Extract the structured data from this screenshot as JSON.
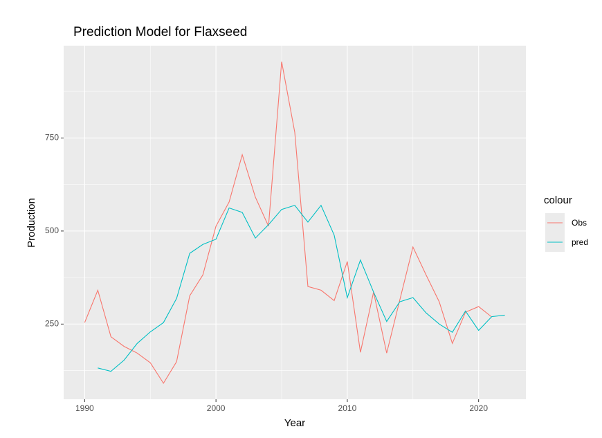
{
  "chart_data": {
    "type": "line",
    "title": "Prediction Model for Flaxseed",
    "x_label": "Year",
    "y_label": "Production",
    "legend_title": "colour",
    "x": [
      1990,
      1991,
      1992,
      1993,
      1994,
      1995,
      1996,
      1997,
      1998,
      1999,
      2000,
      2001,
      2002,
      2003,
      2004,
      2005,
      2006,
      2007,
      2008,
      2009,
      2010,
      2011,
      2012,
      2013,
      2014,
      2015,
      2016,
      2017,
      2018,
      2019,
      2020,
      2021,
      2022
    ],
    "series": [
      {
        "name": "Obs",
        "color": "#F8766D",
        "values": [
          254,
          341,
          216,
          190,
          172,
          146,
          91,
          149,
          326,
          382,
          513,
          578,
          705,
          591,
          513,
          955,
          765,
          351,
          341,
          313,
          418,
          174,
          336,
          172,
          315,
          457,
          382,
          310,
          198,
          282,
          297,
          269,
          null
        ]
      },
      {
        "name": "pred",
        "color": "#00BFC4",
        "values": [
          null,
          132,
          123,
          153,
          198,
          229,
          254,
          319,
          440,
          464,
          478,
          562,
          550,
          481,
          517,
          558,
          569,
          524,
          569,
          489,
          321,
          422,
          336,
          257,
          310,
          321,
          280,
          250,
          228,
          285,
          233,
          270,
          274
        ]
      }
    ],
    "xlim": [
      1988.4,
      2023.6
    ],
    "xticks": [
      1990,
      2000,
      2010,
      2020
    ],
    "ylim": [
      48,
      998
    ],
    "yticks": [
      250,
      500,
      750
    ],
    "grid": true,
    "legend": "right"
  }
}
